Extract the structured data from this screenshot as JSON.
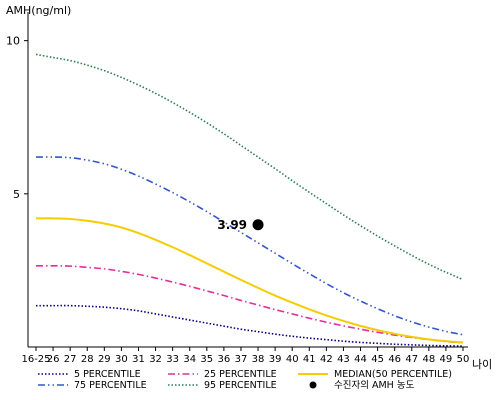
{
  "chart_data": {
    "type": "line",
    "y_axis_title": "AMH(ng/ml)",
    "x_axis_title": "나이",
    "ylim": [
      0,
      11
    ],
    "yticks": [
      5,
      10
    ],
    "grid": false,
    "categories": [
      "16-25",
      "26",
      "27",
      "28",
      "29",
      "30",
      "31",
      "32",
      "33",
      "34",
      "35",
      "36",
      "37",
      "38",
      "39",
      "40",
      "41",
      "42",
      "43",
      "44",
      "45",
      "46",
      "47",
      "48",
      "49",
      "50"
    ],
    "series": [
      {
        "name": "5 PERCENTILE",
        "color": "#000080",
        "style": "dotted",
        "values": [
          1.35,
          1.35,
          1.35,
          1.33,
          1.3,
          1.25,
          1.18,
          1.08,
          0.98,
          0.88,
          0.78,
          0.68,
          0.58,
          0.5,
          0.42,
          0.35,
          0.29,
          0.24,
          0.19,
          0.15,
          0.12,
          0.09,
          0.07,
          0.05,
          0.04,
          0.03
        ]
      },
      {
        "name": "25 PERCENTILE",
        "color": "#e0309a",
        "style": "dashdot",
        "values": [
          2.65,
          2.65,
          2.64,
          2.6,
          2.55,
          2.47,
          2.37,
          2.25,
          2.12,
          1.98,
          1.83,
          1.68,
          1.52,
          1.37,
          1.22,
          1.08,
          0.94,
          0.81,
          0.69,
          0.58,
          0.48,
          0.39,
          0.31,
          0.24,
          0.18,
          0.13
        ]
      },
      {
        "name": "MEDIAN(50 PERCENTILE)",
        "color": "#f5cc00",
        "style": "solid",
        "values": [
          4.2,
          4.2,
          4.18,
          4.12,
          4.03,
          3.9,
          3.72,
          3.5,
          3.26,
          3.0,
          2.73,
          2.46,
          2.19,
          1.93,
          1.68,
          1.45,
          1.23,
          1.03,
          0.85,
          0.69,
          0.55,
          0.43,
          0.33,
          0.25,
          0.19,
          0.15
        ]
      },
      {
        "name": "75 PERCENTILE",
        "color": "#3355cc",
        "style": "dashdotdot",
        "values": [
          6.2,
          6.2,
          6.18,
          6.1,
          5.98,
          5.8,
          5.58,
          5.32,
          5.04,
          4.74,
          4.42,
          4.08,
          3.74,
          3.4,
          3.06,
          2.72,
          2.39,
          2.07,
          1.77,
          1.5,
          1.25,
          1.02,
          0.82,
          0.65,
          0.51,
          0.4
        ]
      },
      {
        "name": "95 PERCENTILE",
        "color": "#2e7d4f",
        "style": "dotted",
        "values": [
          9.55,
          9.45,
          9.35,
          9.2,
          9.02,
          8.8,
          8.55,
          8.28,
          7.98,
          7.66,
          7.32,
          6.96,
          6.58,
          6.2,
          5.82,
          5.43,
          5.05,
          4.68,
          4.31,
          3.96,
          3.62,
          3.3,
          2.99,
          2.7,
          2.44,
          2.2
        ]
      }
    ],
    "point": {
      "label": "수진자의 AMH 농도",
      "value_label": "3.99",
      "x": "38",
      "y": 3.99,
      "color": "#000000"
    },
    "legend": {
      "placement": "bottom",
      "order": [
        "5 PERCENTILE",
        "25 PERCENTILE",
        "MEDIAN(50 PERCENTILE)",
        "75 PERCENTILE",
        "95 PERCENTILE",
        "수진자의 AMH 농도"
      ]
    }
  }
}
